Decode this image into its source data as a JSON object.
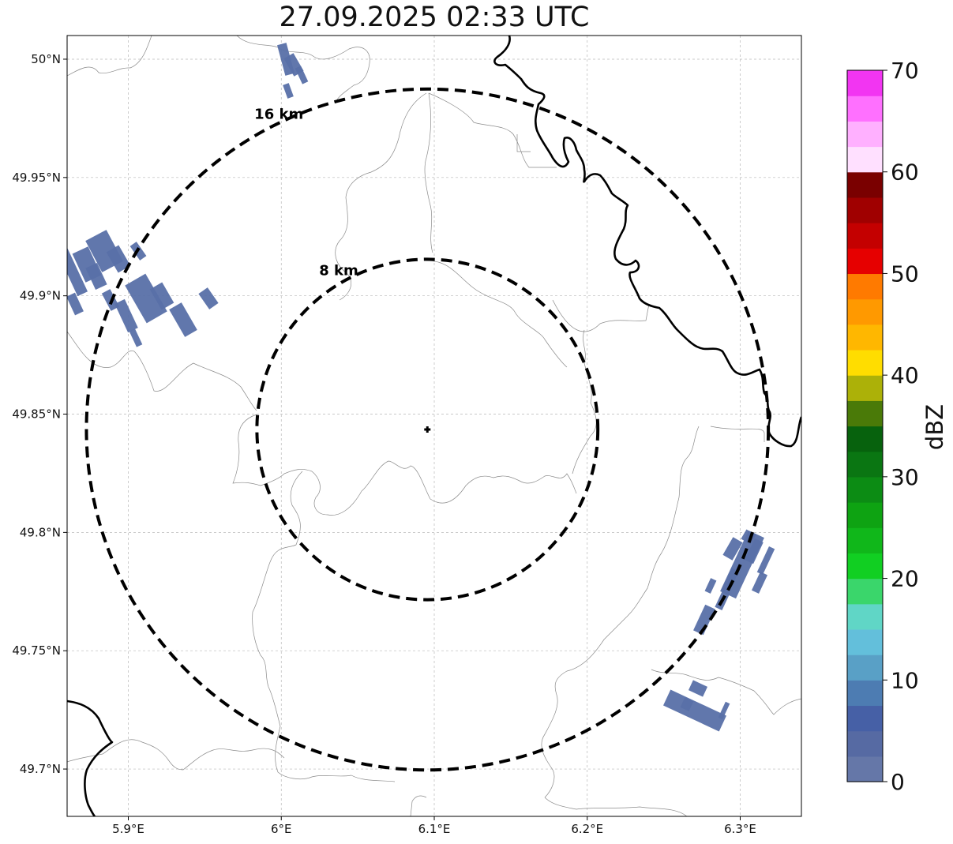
{
  "title": "27.09.2025 02:33 UTC",
  "map": {
    "lon_range": [
      5.86,
      6.34
    ],
    "lat_range": [
      49.68,
      50.01
    ],
    "lon_ticks": [
      {
        "value": 5.9,
        "label": "5.9°E"
      },
      {
        "value": 6.0,
        "label": "6°E"
      },
      {
        "value": 6.1,
        "label": "6.1°E"
      },
      {
        "value": 6.2,
        "label": "6.2°E"
      },
      {
        "value": 6.3,
        "label": "6.3°E"
      }
    ],
    "lat_ticks": [
      {
        "value": 50.0,
        "label": "50°N"
      },
      {
        "value": 49.95,
        "label": "49.95°N"
      },
      {
        "value": 49.9,
        "label": "49.9°N"
      },
      {
        "value": 49.85,
        "label": "49.85°N"
      },
      {
        "value": 49.8,
        "label": "49.8°N"
      },
      {
        "value": 49.75,
        "label": "49.75°N"
      },
      {
        "value": 49.7,
        "label": "49.7°N"
      }
    ],
    "grid": true,
    "radar_site": {
      "lon": 6.0955,
      "lat": 49.8435
    },
    "range_rings": [
      {
        "radius_km": 8,
        "label": "8 km"
      },
      {
        "radius_km": 16,
        "label": "16 km"
      }
    ],
    "echo_color": "#5870a8"
  },
  "colorbar": {
    "label": "dBZ",
    "vmin": 0,
    "vmax": 70,
    "ticks": [
      {
        "value": 0,
        "label": "0"
      },
      {
        "value": 10,
        "label": "10"
      },
      {
        "value": 20,
        "label": "20"
      },
      {
        "value": 30,
        "label": "30"
      },
      {
        "value": 40,
        "label": "40"
      },
      {
        "value": 50,
        "label": "50"
      },
      {
        "value": 60,
        "label": "60"
      },
      {
        "value": 70,
        "label": "70"
      }
    ],
    "colors": [
      "#6577a8",
      "#566aa3",
      "#4660a6",
      "#4d7cb2",
      "#59a0c6",
      "#63bfdb",
      "#60d6c6",
      "#3ad66b",
      "#11cf22",
      "#10b71a",
      "#0ea312",
      "#0c8c14",
      "#0a7612",
      "#07620d",
      "#4a7a08",
      "#acb108",
      "#ffdd00",
      "#ffb700",
      "#ff9900",
      "#ff7a00",
      "#e60000",
      "#c40000",
      "#a00000",
      "#7a0000",
      "#ffe0ff",
      "#ffb0ff",
      "#ff70ff",
      "#f235f2"
    ]
  }
}
